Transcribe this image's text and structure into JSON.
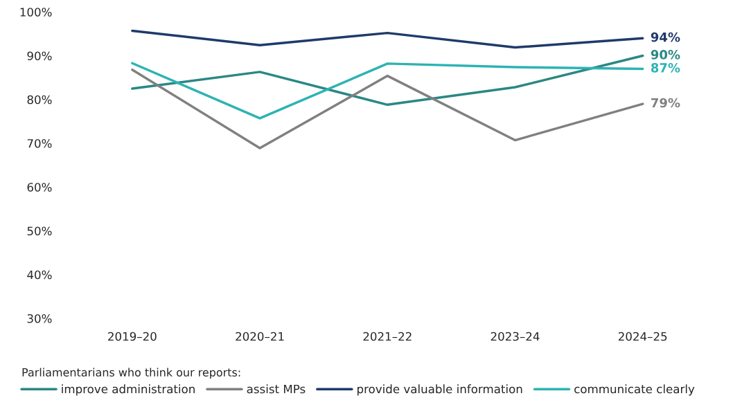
{
  "chart_data": {
    "type": "line",
    "categories": [
      "2019–20",
      "2020–21",
      "2021–22",
      "2023–24",
      "2024–25"
    ],
    "series": [
      {
        "name": "improve administration",
        "color": "#2a8884",
        "values": [
          82.5,
          86.3,
          78.8,
          82.8,
          90
        ],
        "value_labels": [
          null,
          null,
          null,
          null,
          "90%"
        ]
      },
      {
        "name": "assist MPs",
        "color": "#808080",
        "values": [
          86.8,
          68.9,
          85.4,
          70.7,
          79
        ],
        "value_labels": [
          null,
          null,
          null,
          null,
          "79%"
        ]
      },
      {
        "name": "provide valuable information",
        "color": "#1f3a6b",
        "values": [
          95.7,
          92.4,
          95.2,
          91.9,
          94
        ],
        "value_labels": [
          null,
          null,
          null,
          null,
          "94%"
        ]
      },
      {
        "name": "communicate clearly",
        "color": "#2cb3b3",
        "values": [
          88.3,
          75.7,
          88.2,
          87.4,
          87
        ],
        "value_labels": [
          null,
          null,
          null,
          null,
          "87%"
        ]
      }
    ],
    "ylim": [
      30,
      100
    ],
    "yticks": [
      {
        "value": 30,
        "label": "30%"
      },
      {
        "value": 40,
        "label": "40%"
      },
      {
        "value": 50,
        "label": "50%"
      },
      {
        "value": 60,
        "label": "60%"
      },
      {
        "value": 70,
        "label": "70%"
      },
      {
        "value": 80,
        "label": "80%"
      },
      {
        "value": 90,
        "label": "90%"
      },
      {
        "value": 100,
        "label": "100%"
      }
    ],
    "legend_title": "Parliamentarians who think our reports:",
    "legend": "bottom",
    "grid": false,
    "marker": "none",
    "line_style": "solid"
  }
}
